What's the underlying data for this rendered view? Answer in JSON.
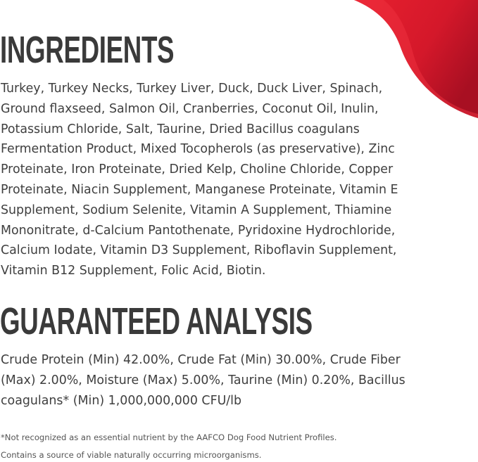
{
  "brand_color": "#e01a2b",
  "ingredients": {
    "heading": "INGREDIENTS",
    "lines": [
      "Turkey, Turkey Necks, Turkey Liver, Duck, Duck Liver, Spinach,",
      "Ground flaxseed, Salmon Oil, Cranberries, Coconut Oil, Inulin,",
      "Potassium Chloride, Salt, Taurine, Dried Bacillus coagulans",
      "Fermentation Product, Mixed Tocopherols (as preservative), Zinc",
      "Proteinate, Iron Proteinate, Dried Kelp, Choline Chloride, Copper",
      "Proteinate, Niacin Supplement, Manganese Proteinate, Vitamin E",
      "Supplement, Sodium Selenite, Vitamin A Supplement, Thiamine",
      "Mononitrate, d-Calcium Pantothenate, Pyridoxine Hydrochloride,",
      "Calcium Iodate, Vitamin D3 Supplement, Riboflavin Supplement,",
      "Vitamin B12 Supplement, Folic Acid, Biotin."
    ]
  },
  "analysis": {
    "heading": "GUARANTEED ANALYSIS",
    "lines": [
      "Crude Protein (Min) 42.00%, Crude Fat (Min) 30.00%, Crude Fiber",
      "(Max) 2.00%, Moisture (Max) 5.00%, Taurine (Min) 0.20%, Bacillus",
      "coagulans* (Min) 1,000,000,000 CFU/lb"
    ]
  },
  "footnotes": [
    "*Not recognized as an essential nutrient by the AAFCO Dog Food Nutrient Profiles.",
    "Contains a source of viable naturally occurring microorganisms."
  ]
}
